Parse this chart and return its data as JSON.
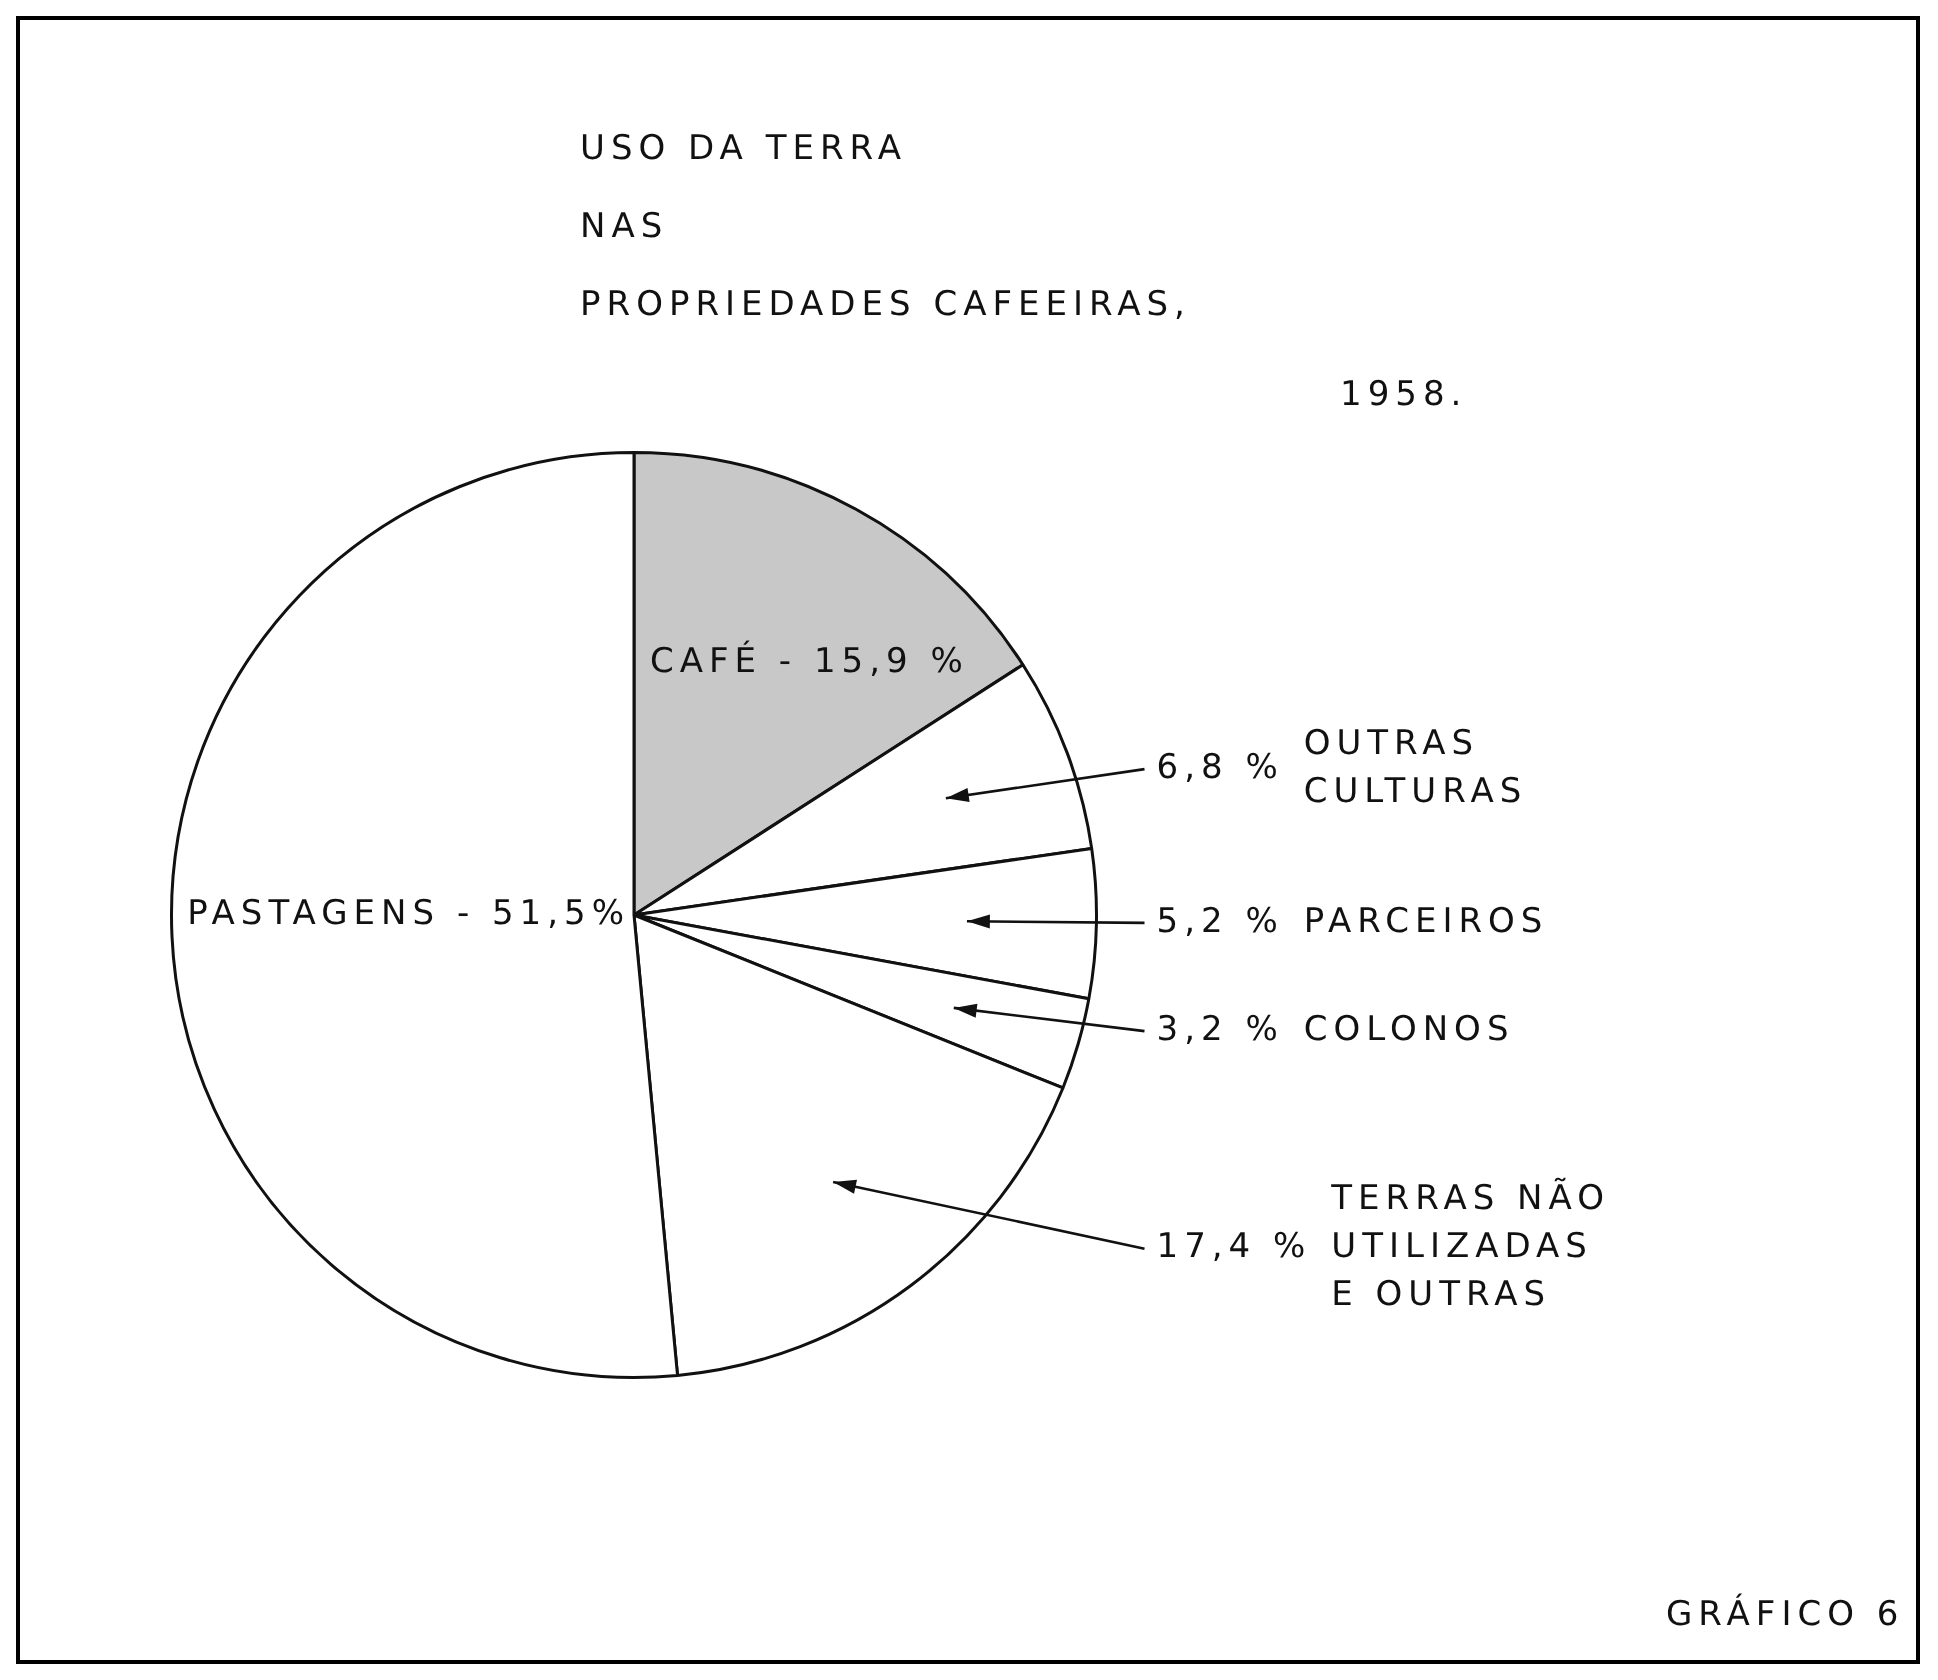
{
  "chart_data": {
    "type": "pie",
    "title": "USO DA TERRA\nNAS\nPROPRIEDADES CAFEEIRAS,",
    "subtitle": "1958.",
    "categories": [
      "CAFÉ",
      "OUTRAS CULTURAS",
      "PARCEIROS",
      "COLONOS",
      "TERRAS NÃO UTILIZADAS E OUTRAS",
      "PASTAGENS"
    ],
    "values": [
      15.9,
      6.8,
      5.2,
      3.2,
      17.4,
      51.5
    ],
    "colors": [
      "#c8c8c8",
      "#ffffff",
      "#ffffff",
      "#ffffff",
      "#ffffff",
      "#ffffff"
    ],
    "value_labels": [
      "15,9 %",
      "6,8 %",
      "5,2 %",
      "3,2 %",
      "17,4 %",
      "51,5%"
    ],
    "legend": false,
    "annotations": [
      "GRÁFICO 6"
    ]
  }
}
